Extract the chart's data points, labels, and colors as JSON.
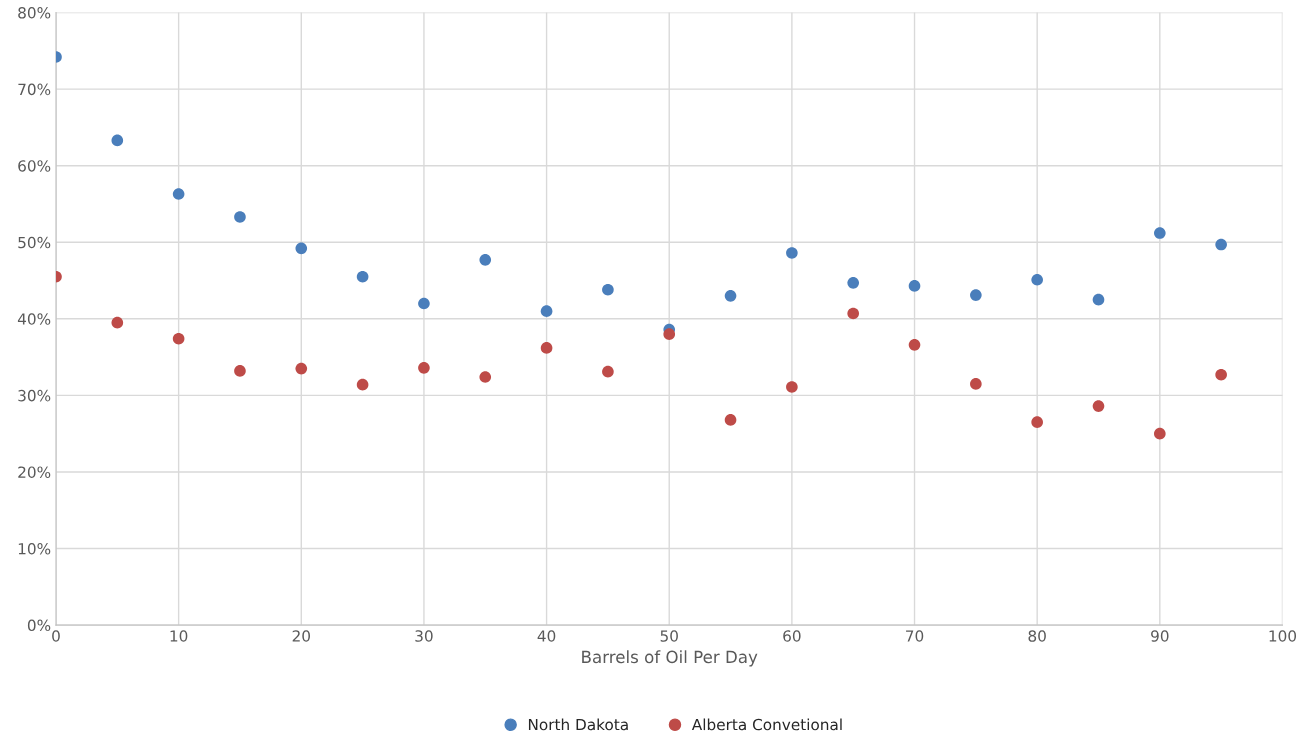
{
  "chart_data": {
    "type": "scatter",
    "xlabel": "Barrels of Oil Per Day",
    "x": [
      0,
      5,
      10,
      15,
      20,
      25,
      30,
      35,
      40,
      45,
      50,
      55,
      60,
      65,
      70,
      75,
      80,
      85,
      90,
      95
    ],
    "series": [
      {
        "name": "North Dakota",
        "color": "#4a7ebb",
        "values": [
          74.2,
          63.3,
          56.3,
          53.3,
          49.2,
          45.5,
          42.0,
          47.7,
          41.0,
          43.8,
          38.6,
          43.0,
          48.6,
          44.7,
          44.3,
          43.1,
          45.1,
          42.5,
          51.2,
          49.7
        ]
      },
      {
        "name": "Alberta Convetional",
        "color": "#be4b48",
        "values": [
          45.5,
          39.5,
          37.4,
          33.2,
          33.5,
          31.4,
          33.6,
          32.4,
          36.2,
          33.1,
          38.0,
          26.8,
          31.1,
          40.7,
          36.6,
          31.5,
          26.5,
          28.6,
          25.0,
          32.7
        ]
      }
    ],
    "xlim": [
      0,
      100
    ],
    "xticks": [
      0,
      10,
      20,
      30,
      40,
      50,
      60,
      70,
      80,
      90,
      100
    ],
    "ylim": [
      0,
      80
    ],
    "yticks": [
      {
        "value": 0,
        "label": "0%"
      },
      {
        "value": 10,
        "label": "10%"
      },
      {
        "value": 20,
        "label": "20%"
      },
      {
        "value": 30,
        "label": "30%"
      },
      {
        "value": 40,
        "label": "40%"
      },
      {
        "value": 50,
        "label": "50%"
      },
      {
        "value": 60,
        "label": "60%"
      },
      {
        "value": 70,
        "label": "70%"
      },
      {
        "value": 80,
        "label": "80%"
      }
    ],
    "grid": true,
    "legend": "bottom",
    "marker": "circle"
  }
}
